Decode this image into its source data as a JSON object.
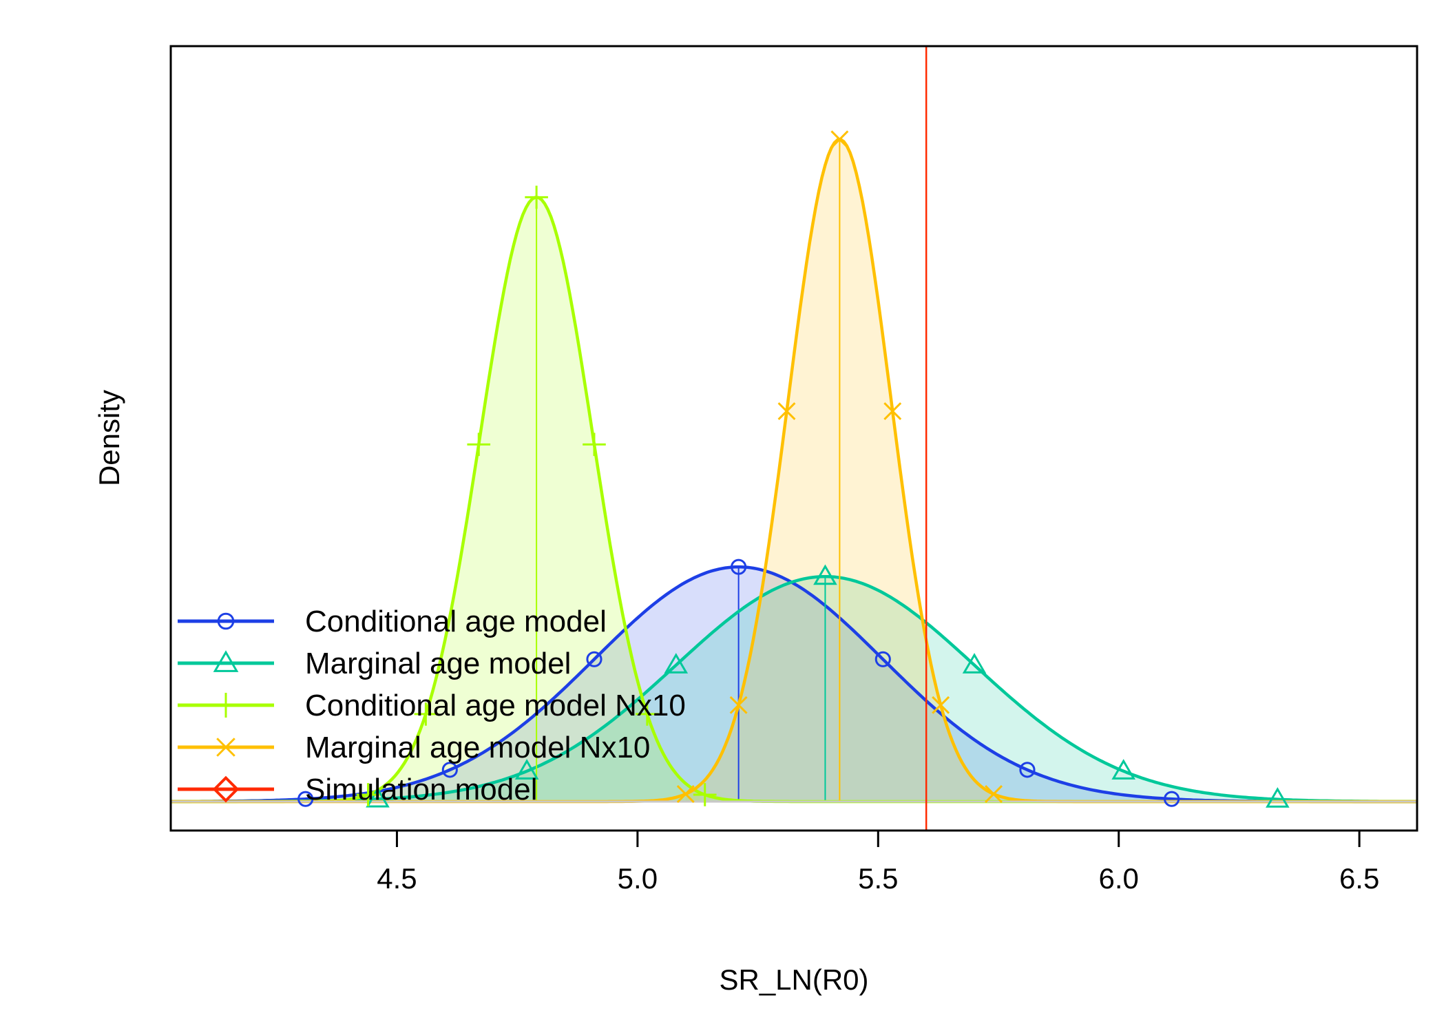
{
  "chart_data": {
    "type": "line",
    "title": "",
    "xlabel": "SR_LN(R0)",
    "ylabel": "Density",
    "xlim": [
      4.03,
      6.62
    ],
    "ylim": [
      -0.09,
      2.35
    ],
    "x_ticks": [
      "4.5",
      "5.0",
      "5.5",
      "6.0",
      "6.5"
    ],
    "x_tick_values": [
      4.5,
      5.0,
      5.5,
      6.0,
      6.5
    ],
    "y_ticks_shown": false,
    "grid": false,
    "legend_position": "bottom-left",
    "reference_line": {
      "name": "Simulation model",
      "x": 5.6,
      "color": "#ff2a00"
    },
    "series": [
      {
        "name": "Conditional age model",
        "color": "#1d3fe6",
        "fill": "#1d3fe6",
        "marker": "circle",
        "mean": 5.21,
        "sd": 0.3,
        "ci": [
          4.03,
          6.11
        ],
        "peak_density": 0.73,
        "marker_x": [
          4.31,
          4.61,
          4.91,
          5.21,
          5.51,
          5.81,
          6.11
        ]
      },
      {
        "name": "Marginal age model",
        "color": "#00c89a",
        "fill": "#00c89a",
        "marker": "triangle",
        "mean": 5.39,
        "sd": 0.31,
        "ci": [
          4.03,
          6.33
        ],
        "peak_density": 0.7,
        "marker_x": [
          4.46,
          4.77,
          5.08,
          5.39,
          5.7,
          6.01,
          6.33
        ]
      },
      {
        "name": "Conditional age model Nx10",
        "color": "#a8ff00",
        "fill": "#a8ff00",
        "marker": "plus",
        "mean": 4.79,
        "sd": 0.117,
        "ci": [
          4.45,
          5.13
        ],
        "peak_density": 1.88,
        "marker_x": [
          4.44,
          4.56,
          4.67,
          4.79,
          4.91,
          5.02,
          5.14
        ]
      },
      {
        "name": "Marginal age model Nx10",
        "color": "#ffc000",
        "fill": "#ffc000",
        "marker": "cross",
        "mean": 5.42,
        "sd": 0.107,
        "ci": [
          5.1,
          5.74
        ],
        "peak_density": 2.06,
        "marker_x": [
          5.1,
          5.21,
          5.31,
          5.42,
          5.53,
          5.63,
          5.74
        ]
      }
    ],
    "legend": [
      {
        "label": "Conditional age model",
        "color": "#1d3fe6",
        "marker": "circle"
      },
      {
        "label": "Marginal age model",
        "color": "#00c89a",
        "marker": "triangle"
      },
      {
        "label": "Conditional age model Nx10",
        "color": "#a8ff00",
        "marker": "plus"
      },
      {
        "label": "Marginal age model Nx10",
        "color": "#ffc000",
        "marker": "cross"
      },
      {
        "label": "Simulation model",
        "color": "#ff2a00",
        "marker": "diamond"
      }
    ]
  }
}
